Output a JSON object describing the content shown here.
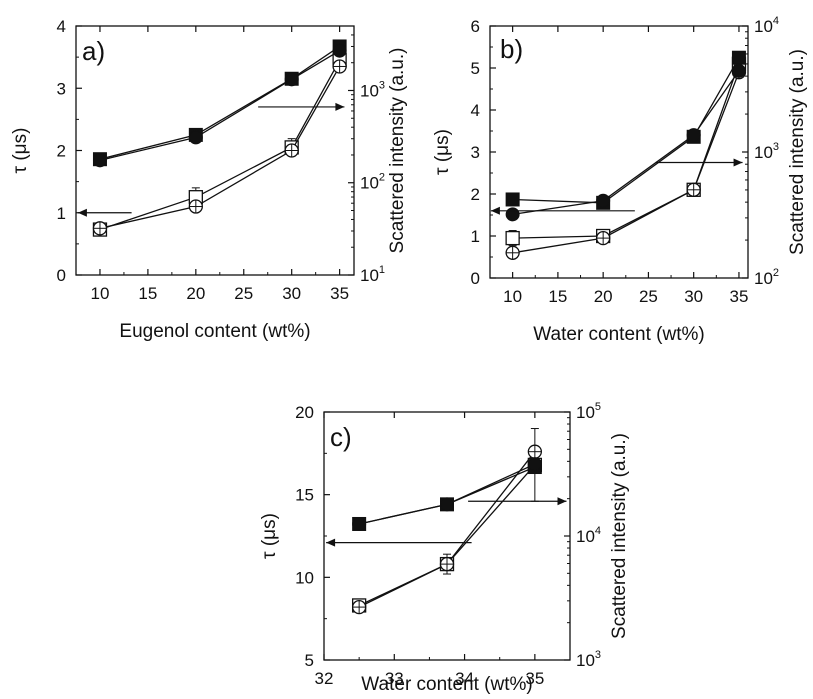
{
  "chart_data": [
    {
      "type": "line",
      "panel_label": "a)",
      "xlabel": "Eugenol content (wt%)",
      "ylabel": "τ (μs)",
      "y2label": "Scattered intensity (a.u.)",
      "xlim": [
        7.5,
        36.5
      ],
      "ylim": [
        0,
        4
      ],
      "y2lim": [
        10,
        5000
      ],
      "y2scale": "log",
      "xticks": [
        10,
        15,
        20,
        25,
        30,
        35
      ],
      "yticks": [
        0,
        1,
        2,
        3,
        4
      ],
      "y2ticks": [
        {
          "base": "10",
          "exp": "1",
          "value": 10
        },
        {
          "base": "10",
          "exp": "2",
          "value": 100
        },
        {
          "base": "10",
          "exp": "3",
          "value": 1000
        }
      ],
      "series": [
        {
          "axis": "left",
          "marker": "open-square",
          "x": [
            10,
            20,
            30,
            35
          ],
          "y": [
            0.73,
            1.25,
            2.05,
            3.45
          ],
          "err": [
            0.08,
            0.15,
            0.14,
            0.12
          ]
        },
        {
          "axis": "left",
          "marker": "open-circle-cross",
          "x": [
            10,
            20,
            30,
            35
          ],
          "y": [
            0.75,
            1.1,
            2.0,
            3.35
          ],
          "err": [
            0,
            0,
            0,
            0
          ]
        },
        {
          "axis": "right",
          "marker": "filled-square",
          "x": [
            10,
            20,
            30,
            35
          ],
          "y": [
            180,
            330,
            1340,
            3000
          ],
          "err": [
            0,
            0,
            0,
            0
          ]
        },
        {
          "axis": "right",
          "marker": "filled-circle",
          "x": [
            10,
            20,
            30,
            35
          ],
          "y": [
            175,
            310,
            1320,
            2700
          ],
          "err": [
            0,
            0,
            0,
            0
          ]
        }
      ],
      "arrows": [
        {
          "from": [
            13.3,
            1.0
          ],
          "to": [
            7.7,
            1.0
          ],
          "axis": "left"
        },
        {
          "from": [
            26.5,
            2.7
          ],
          "to": [
            35.5,
            2.7
          ],
          "axis": "left"
        }
      ]
    },
    {
      "type": "line",
      "panel_label": "b)",
      "xlabel": "Water content (wt%)",
      "ylabel": "τ (μs)",
      "y2label": "Scattered intensity (a.u.)",
      "xlim": [
        7.5,
        36
      ],
      "ylim": [
        0,
        6
      ],
      "y2lim": [
        100,
        10000
      ],
      "y2scale": "log",
      "xticks": [
        10,
        15,
        20,
        25,
        30,
        35
      ],
      "yticks": [
        0,
        1,
        2,
        3,
        4,
        5,
        6
      ],
      "y2ticks": [
        {
          "base": "10",
          "exp": "2",
          "value": 100
        },
        {
          "base": "10",
          "exp": "3",
          "value": 1000
        },
        {
          "base": "10",
          "exp": "4",
          "value": 10000
        }
      ],
      "series": [
        {
          "axis": "left",
          "marker": "open-square",
          "x": [
            10,
            20,
            30,
            35
          ],
          "y": [
            0.95,
            1.0,
            2.1,
            5.1
          ],
          "err": [
            0.18,
            0.08,
            0.1,
            0.1
          ]
        },
        {
          "axis": "left",
          "marker": "open-circle-cross",
          "x": [
            10,
            20,
            30,
            35
          ],
          "y": [
            0.6,
            0.95,
            2.1,
            4.9
          ],
          "err": [
            0,
            0,
            0,
            0
          ]
        },
        {
          "axis": "right",
          "marker": "filled-square",
          "x": [
            10,
            20,
            30,
            35
          ],
          "y": [
            420,
            395,
            1320,
            5600
          ],
          "err": [
            0,
            0,
            0,
            0
          ]
        },
        {
          "axis": "right",
          "marker": "filled-circle",
          "x": [
            10,
            20,
            30,
            35
          ],
          "y": [
            320,
            410,
            1360,
            4400
          ],
          "err": [
            0,
            0,
            0,
            0
          ]
        }
      ],
      "arrows": [
        {
          "from": [
            23.5,
            1.6
          ],
          "to": [
            7.6,
            1.6
          ],
          "axis": "left"
        },
        {
          "from": [
            25.8,
            2.75
          ],
          "to": [
            35.4,
            2.75
          ],
          "axis": "left"
        }
      ]
    },
    {
      "type": "line",
      "panel_label": "c)",
      "xlabel": "Water content (wt%)",
      "ylabel": "τ (μs)",
      "y2label": "Scattered intensity (a.u.)",
      "xlim": [
        32,
        35.5
      ],
      "ylim": [
        5,
        20
      ],
      "y2lim": [
        1000,
        100000
      ],
      "y2scale": "log",
      "xticks": [
        32,
        33,
        34,
        35
      ],
      "yticks": [
        5,
        10,
        15,
        20
      ],
      "y2ticks": [
        {
          "base": "10",
          "exp": "3",
          "value": 1000
        },
        {
          "base": "10",
          "exp": "4",
          "value": 10000
        },
        {
          "base": "10",
          "exp": "5",
          "value": 100000
        }
      ],
      "series": [
        {
          "axis": "left",
          "marker": "open-square",
          "x": [
            32.5,
            33.75,
            35
          ],
          "y": [
            8.3,
            10.8,
            16.8
          ],
          "err": [
            0.3,
            0.6,
            2.2
          ]
        },
        {
          "axis": "left",
          "marker": "open-circle-cross",
          "x": [
            32.5,
            33.75,
            35
          ],
          "y": [
            8.2,
            10.8,
            17.6
          ],
          "err": [
            0,
            0,
            0
          ]
        },
        {
          "axis": "right",
          "marker": "filled-square",
          "x": [
            32.5,
            33.75,
            35
          ],
          "y": [
            12500,
            18000,
            36000
          ],
          "err": [
            0,
            0,
            0
          ]
        },
        {
          "axis": "right",
          "marker": "filled-circle",
          "x": [
            32.5,
            33.75,
            35
          ],
          "y": [
            12500,
            18000,
            38000
          ],
          "err": [
            0,
            0,
            0
          ]
        }
      ],
      "arrows": [
        {
          "from": [
            34.1,
            12.1
          ],
          "to": [
            32.03,
            12.1
          ],
          "axis": "left"
        },
        {
          "from": [
            34.05,
            14.6
          ],
          "to": [
            35.45,
            14.6
          ],
          "axis": "left"
        }
      ]
    }
  ]
}
